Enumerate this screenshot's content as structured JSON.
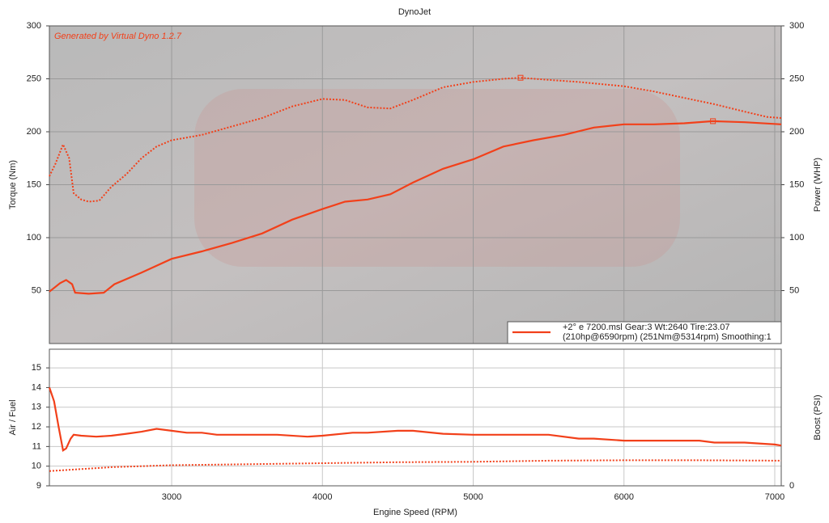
{
  "chart_data": [
    {
      "type": "line",
      "title": "DynoJet",
      "annotation": "Generated by Virtual Dyno 1.2.7",
      "ylabel": "Torque (Nm)",
      "y2label": "Power (WHP)",
      "xlim": [
        2189,
        7043
      ],
      "xticks": [
        3000,
        4000,
        5000,
        6000,
        7000
      ],
      "ylim": [
        0,
        300
      ],
      "yticks": [
        50,
        100,
        150,
        200,
        250,
        300
      ],
      "y2lim": [
        0,
        300
      ],
      "y2ticks": [
        50,
        100,
        150,
        200,
        250,
        300
      ],
      "grid": true,
      "legend": "lower right",
      "legend_note": "(210hp@6590rpm) (251Nm@5314rpm) Smoothing:1",
      "series": [
        {
          "name": "+2° e 7200.msl Gear:3 Wt:2640 Tire:23.07",
          "color": "#f2401a",
          "style": "solid",
          "axis": "y2",
          "x": [
            2189,
            2260,
            2300,
            2340,
            2360,
            2450,
            2550,
            2620,
            2800,
            3000,
            3200,
            3400,
            3600,
            3800,
            4000,
            4150,
            4300,
            4450,
            4600,
            4800,
            5000,
            5200,
            5400,
            5600,
            5800,
            6000,
            6200,
            6400,
            6590,
            6800,
            7043
          ],
          "values": [
            49,
            57,
            60,
            56,
            48,
            47,
            48,
            56,
            67,
            80,
            87,
            95,
            104,
            117,
            127,
            134,
            136,
            141,
            152,
            165,
            174,
            186,
            192,
            197,
            204,
            207,
            207,
            208,
            210,
            209,
            207
          ],
          "peak": {
            "x": 6590,
            "y": 210
          }
        },
        {
          "color": "#f2401a",
          "style": "dotted",
          "x": [
            2189,
            2230,
            2280,
            2320,
            2350,
            2400,
            2450,
            2520,
            2600,
            2700,
            2800,
            2900,
            3000,
            3200,
            3400,
            3600,
            3800,
            4000,
            4150,
            4300,
            4450,
            4600,
            4800,
            5000,
            5200,
            5314,
            5500,
            5700,
            6000,
            6200,
            6400,
            6600,
            6800,
            6950,
            7043
          ],
          "values": [
            158,
            170,
            188,
            175,
            142,
            136,
            134,
            135,
            148,
            160,
            175,
            186,
            192,
            197,
            205,
            213,
            224,
            231,
            230,
            223,
            222,
            230,
            242,
            247,
            250,
            251,
            249,
            247,
            243,
            238,
            232,
            226,
            219,
            214,
            213
          ],
          "peak": {
            "x": 5314,
            "y": 251
          }
        }
      ]
    },
    {
      "type": "line",
      "xlabel": "Engine Speed (RPM)",
      "ylabel": "Air / Fuel",
      "y2label": "Boost (PSI)",
      "xlim": [
        2189,
        7043
      ],
      "xticks": [
        3000,
        4000,
        5000,
        6000,
        7000
      ],
      "ylim": [
        9,
        15.95
      ],
      "yticks": [
        9,
        10,
        11,
        12,
        13,
        14,
        15
      ],
      "y2lim": [
        0,
        6.95
      ],
      "y2ticks": [
        0
      ],
      "grid": true,
      "series": [
        {
          "color": "#f2401a",
          "style": "solid",
          "x": [
            2189,
            2220,
            2250,
            2280,
            2300,
            2330,
            2350,
            2400,
            2500,
            2600,
            2700,
            2800,
            2900,
            3000,
            3100,
            3200,
            3300,
            3500,
            3700,
            3900,
            4000,
            4200,
            4300,
            4500,
            4600,
            4800,
            5000,
            5200,
            5500,
            5700,
            5800,
            6000,
            6200,
            6500,
            6600,
            6800,
            7000,
            7043
          ],
          "values": [
            14.0,
            13.3,
            12.0,
            10.8,
            10.9,
            11.4,
            11.6,
            11.55,
            11.5,
            11.55,
            11.65,
            11.75,
            11.9,
            11.8,
            11.7,
            11.7,
            11.6,
            11.6,
            11.6,
            11.5,
            11.55,
            11.7,
            11.7,
            11.8,
            11.8,
            11.65,
            11.6,
            11.6,
            11.6,
            11.4,
            11.4,
            11.3,
            11.3,
            11.3,
            11.2,
            11.2,
            11.1,
            11.05
          ]
        },
        {
          "color": "#f2401a",
          "style": "dotted",
          "x": [
            2189,
            2400,
            2600,
            3000,
            3500,
            4000,
            4500,
            5000,
            5500,
            6000,
            6500,
            7043
          ],
          "values": [
            9.75,
            9.85,
            9.95,
            10.05,
            10.1,
            10.15,
            10.2,
            10.22,
            10.28,
            10.3,
            10.3,
            10.28
          ]
        }
      ]
    }
  ]
}
